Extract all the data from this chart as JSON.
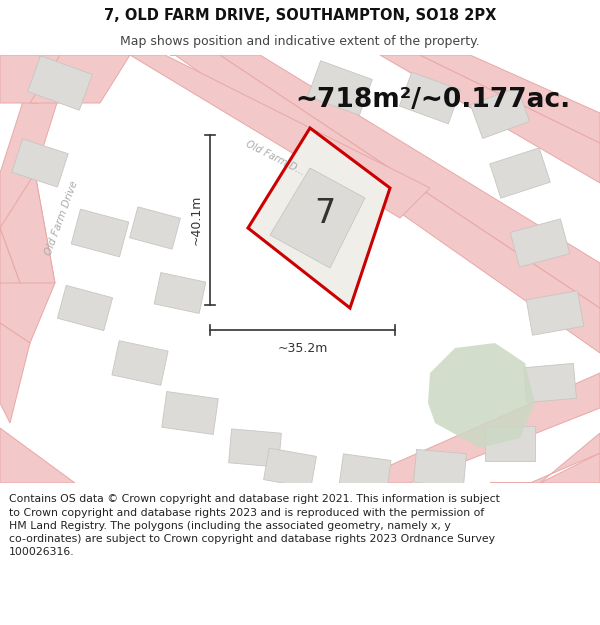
{
  "title": "7, OLD FARM DRIVE, SOUTHAMPTON, SO18 2PX",
  "subtitle": "Map shows position and indicative extent of the property.",
  "area_text": "~718m²/~0.177ac.",
  "house_number": "7",
  "dim_width": "~35.2m",
  "dim_height": "~40.1m",
  "map_bg": "#f0eeeb",
  "road_color": "#f2c8c8",
  "road_edge": "#e8a8a8",
  "building_fill": "#dddbd8",
  "building_edge": "#c8c6c2",
  "plot_fill": "#f0eee9",
  "plot_stroke": "#cc0000",
  "green_fill": "#ccd8c4",
  "footer_text": "Contains OS data © Crown copyright and database right 2021. This information is subject\nto Crown copyright and database rights 2023 and is reproduced with the permission of\nHM Land Registry. The polygons (including the associated geometry, namely x, y\nco-ordinates) are subject to Crown copyright and database rights 2023 Ordnance Survey\n100026316.",
  "road_label_1": "Old Farm Drive",
  "road_label_2": "Old Farm D...",
  "title_fontsize": 10.5,
  "subtitle_fontsize": 9,
  "area_fontsize": 19,
  "dim_fontsize": 9,
  "number_fontsize": 24,
  "footer_fontsize": 7.8,
  "white": "#ffffff",
  "black": "#111111",
  "dark_gray": "#333333",
  "mid_gray": "#888888"
}
